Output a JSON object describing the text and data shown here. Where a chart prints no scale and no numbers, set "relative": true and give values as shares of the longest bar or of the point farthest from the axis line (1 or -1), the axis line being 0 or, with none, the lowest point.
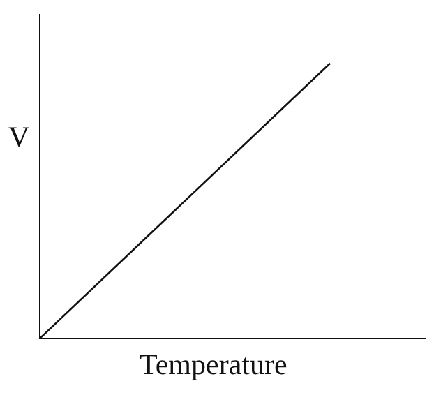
{
  "chart_data": {
    "type": "line",
    "relative": true,
    "xlabel": "Temperature",
    "ylabel": "V",
    "categories": [
      null,
      null
    ],
    "series": [
      {
        "color": "#111111",
        "values": [
          0,
          1
        ]
      }
    ],
    "marker": "none",
    "line_style": "solid"
  }
}
